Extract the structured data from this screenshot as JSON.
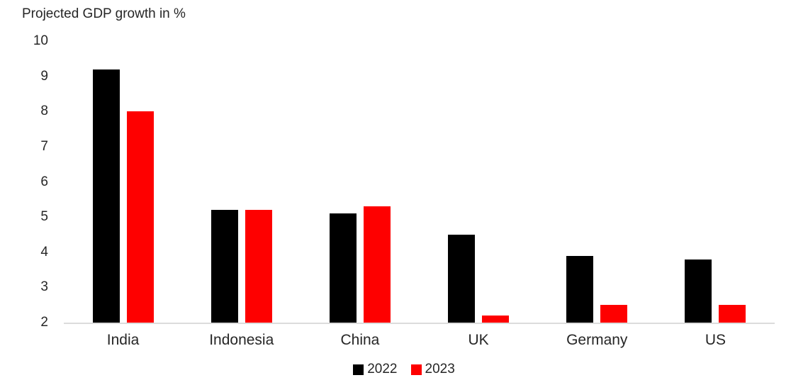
{
  "chart_data": {
    "type": "bar",
    "title": "Projected GDP growth in %",
    "categories": [
      "India",
      "Indonesia",
      "China",
      "UK",
      "Germany",
      "US"
    ],
    "series": [
      {
        "name": "2022",
        "color": "#000000",
        "values": [
          9.2,
          5.2,
          5.1,
          4.5,
          3.9,
          3.8
        ]
      },
      {
        "name": "2023",
        "color": "#fe0000",
        "values": [
          8.0,
          5.2,
          5.3,
          2.2,
          2.5,
          2.5
        ]
      }
    ],
    "xlabel": "",
    "ylabel": "",
    "ylim": [
      2,
      10
    ],
    "yticks": [
      2,
      3,
      4,
      5,
      6,
      7,
      8,
      9,
      10
    ],
    "grid": false,
    "legend_position": "bottom",
    "axis_line_color": "#dcdcdc",
    "text_color": "#262626",
    "background_color": "#ffffff"
  }
}
